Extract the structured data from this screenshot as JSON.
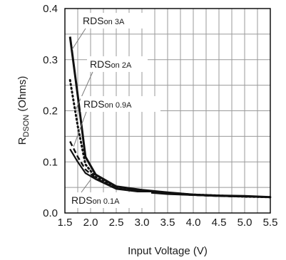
{
  "chart_data": {
    "type": "line",
    "xlabel": "Input Voltage (V)",
    "ylabel": {
      "main": "R",
      "sub": "DSON",
      "unit": " (Ohms)"
    },
    "xlim": [
      1.5,
      5.5
    ],
    "ylim": [
      0,
      0.4
    ],
    "x_tick_values": [
      1.5,
      2.0,
      2.5,
      3.0,
      3.5,
      4.0,
      4.5,
      5.0,
      5.5
    ],
    "x_tick_labels": [
      "1.5",
      "2.0",
      "2.5",
      "3.0",
      "3.5",
      "4.0",
      "4.5",
      "5.0",
      "5.5"
    ],
    "y_tick_values": [
      0,
      0.1,
      0.2,
      0.3,
      0.4
    ],
    "y_tick_labels": [
      "0.0",
      "0.1",
      "0.2",
      "0.3",
      "0.4"
    ],
    "grid": true,
    "series": [
      {
        "name": "RDSon 3A",
        "style": "solid-thick",
        "x": [
          1.6,
          1.75,
          1.9,
          2.1,
          2.5,
          3.0,
          3.5,
          4.0,
          4.5,
          5.0,
          5.5
        ],
        "y": [
          0.345,
          0.23,
          0.11,
          0.075,
          0.052,
          0.045,
          0.04,
          0.036,
          0.034,
          0.033,
          0.031
        ]
      },
      {
        "name": "RDSon 2A",
        "style": "dotted",
        "x": [
          1.6,
          1.75,
          1.9,
          2.1,
          2.5,
          3.0,
          3.5,
          4.0,
          4.5,
          5.0,
          5.5
        ],
        "y": [
          0.26,
          0.17,
          0.095,
          0.07,
          0.05,
          0.043,
          0.039,
          0.036,
          0.034,
          0.032,
          0.031
        ]
      },
      {
        "name": "RDSon 0.9A",
        "style": "dashed",
        "x": [
          1.6,
          1.75,
          1.9,
          2.1,
          2.5,
          3.0,
          3.5,
          4.0,
          4.5,
          5.0,
          5.5
        ],
        "y": [
          0.14,
          0.11,
          0.085,
          0.068,
          0.048,
          0.042,
          0.038,
          0.035,
          0.033,
          0.032,
          0.031
        ]
      },
      {
        "name": "RDSon 0.1A",
        "style": "solid",
        "x": [
          1.6,
          1.75,
          1.9,
          2.1,
          2.5,
          3.0,
          3.5,
          4.0,
          4.5,
          5.0,
          5.5
        ],
        "y": [
          0.125,
          0.1,
          0.078,
          0.066,
          0.047,
          0.041,
          0.037,
          0.035,
          0.033,
          0.032,
          0.031
        ]
      }
    ],
    "annotations": [
      {
        "series": 0,
        "prefix": "RDS",
        "suffix": "on 3A",
        "to_x": 1.64,
        "to_y": 0.32
      },
      {
        "series": 1,
        "prefix": "RDS",
        "suffix": "on 2A",
        "to_x": 1.7,
        "to_y": 0.2
      },
      {
        "series": 2,
        "prefix": "RDS",
        "suffix": "on 0.9A",
        "to_x": 1.67,
        "to_y": 0.13
      },
      {
        "series": 3,
        "prefix": "RDS",
        "suffix": "on 0.1A",
        "to_x": 2.0,
        "to_y": 0.065
      }
    ]
  }
}
